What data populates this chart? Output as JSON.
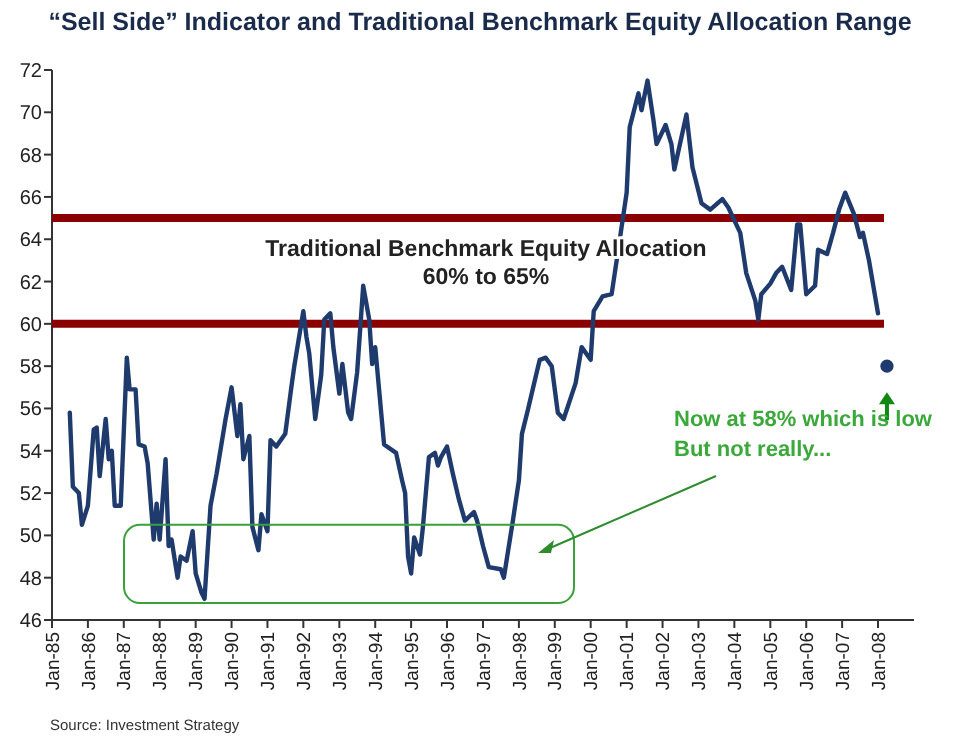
{
  "chart_data": {
    "type": "line",
    "title": "“Sell Side” Indicator  and Traditional Benchmark Equity Allocation Range",
    "series": [
      {
        "color": "#1f3b6e",
        "x": [
          "1985-07",
          "1985-08",
          "1985-10",
          "1985-11",
          "1986-01",
          "1986-03",
          "1986-04",
          "1986-05",
          "1986-07",
          "1986-08",
          "1986-09",
          "1986-10",
          "1986-12",
          "1987-02",
          "1987-03",
          "1987-05",
          "1987-06",
          "1987-08",
          "1987-09",
          "1987-11",
          "1987-12",
          "1988-01",
          "1988-03",
          "1988-04",
          "1988-05",
          "1988-07",
          "1988-08",
          "1988-10",
          "1988-12",
          "1989-01",
          "1989-03",
          "1989-04",
          "1989-06",
          "1989-08",
          "1989-11",
          "1990-01",
          "1990-02",
          "1990-03",
          "1990-04",
          "1990-05",
          "1990-07",
          "1990-08",
          "1990-10",
          "1990-11",
          "1991-01",
          "1991-02",
          "1991-04",
          "1991-07",
          "1991-09",
          "1991-10",
          "1992-01",
          "1992-02",
          "1992-03",
          "1992-05",
          "1992-07",
          "1992-08",
          "1992-10",
          "1992-11",
          "1993-01",
          "1993-02",
          "1993-04",
          "1993-05",
          "1993-07",
          "1993-09",
          "1993-11",
          "1993-12",
          "1994-01",
          "1994-04",
          "1994-08",
          "1994-10",
          "1994-11",
          "1994-12",
          "1995-01",
          "1995-02",
          "1995-04",
          "1995-05",
          "1995-07",
          "1995-09",
          "1995-10",
          "1995-11",
          "1996-01",
          "1996-03",
          "1996-05",
          "1996-07",
          "1996-10",
          "1996-11",
          "1997-01",
          "1997-03",
          "1997-07",
          "1997-08",
          "1997-11",
          "1998-01",
          "1998-02",
          "1998-04",
          "1998-07",
          "1998-08",
          "1998-10",
          "1998-12",
          "1999-02",
          "1999-04",
          "1999-08",
          "1999-10",
          "2000-01",
          "2000-02",
          "2000-05",
          "2000-08",
          "2000-10",
          "2001-01",
          "2001-02",
          "2001-05",
          "2001-06",
          "2001-08",
          "2001-10",
          "2001-11",
          "2002-02",
          "2002-04",
          "2002-05",
          "2002-09",
          "2002-11",
          "2003-02",
          "2003-05",
          "2003-09",
          "2003-11",
          "2004-03",
          "2004-05",
          "2004-08",
          "2004-09",
          "2004-10",
          "2005-01",
          "2005-03",
          "2005-05",
          "2005-08",
          "2005-10",
          "2005-11",
          "2006-01",
          "2006-04",
          "2006-05",
          "2006-08",
          "2006-10",
          "2006-12",
          "2007-02",
          "2007-05",
          "2007-07",
          "2007-08",
          "2007-10",
          "2008-01"
        ],
        "values": [
          55.8,
          52.3,
          52.0,
          50.5,
          51.4,
          55.0,
          55.1,
          52.8,
          55.5,
          53.6,
          54.0,
          51.4,
          51.4,
          58.4,
          56.9,
          56.9,
          54.3,
          54.2,
          53.4,
          49.8,
          51.5,
          49.8,
          53.6,
          49.5,
          49.8,
          48.0,
          49.0,
          48.8,
          50.2,
          48.2,
          47.3,
          47.0,
          51.4,
          52.9,
          55.5,
          57.0,
          55.8,
          54.7,
          56.2,
          53.6,
          54.7,
          50.4,
          49.3,
          51.0,
          50.2,
          54.5,
          54.2,
          54.8,
          57.0,
          58.0,
          60.6,
          59.4,
          58.6,
          55.5,
          57.6,
          60.2,
          60.5,
          58.9,
          56.7,
          58.1,
          55.8,
          55.5,
          57.7,
          61.8,
          60.2,
          58.1,
          58.9,
          54.3,
          53.9,
          52.6,
          52.0,
          49.0,
          48.2,
          49.9,
          49.1,
          50.4,
          53.7,
          53.9,
          53.3,
          53.7,
          54.2,
          52.9,
          51.7,
          50.7,
          51.1,
          50.7,
          49.5,
          48.5,
          48.4,
          48.0,
          50.7,
          52.6,
          54.8,
          55.9,
          57.7,
          58.3,
          58.4,
          58.0,
          55.8,
          55.5,
          57.2,
          58.9,
          58.3,
          60.6,
          61.3,
          61.4,
          63.3,
          66.2,
          69.3,
          70.9,
          70.1,
          71.5,
          69.6,
          68.5,
          69.4,
          68.5,
          67.3,
          69.9,
          67.4,
          65.7,
          65.4,
          65.9,
          65.5,
          64.3,
          62.4,
          61.1,
          60.2,
          61.4,
          61.9,
          62.4,
          62.7,
          61.6,
          64.7,
          64.7,
          61.4,
          61.8,
          63.5,
          63.3,
          64.3,
          65.4,
          66.2,
          65.2,
          64.1,
          64.3,
          63.0,
          60.5
        ]
      },
      {
        "type": "scatter",
        "color": "#1f3b6e",
        "x": [
          "2008-04"
        ],
        "values": [
          58
        ]
      }
    ],
    "xlim": [
      "1985-01",
      "2009-01"
    ],
    "xticks": [
      {
        "value": "1985-01",
        "label": "Jan-85"
      },
      {
        "value": "1986-01",
        "label": "Jan-86"
      },
      {
        "value": "1987-01",
        "label": "Jan-87"
      },
      {
        "value": "1988-01",
        "label": "Jan-88"
      },
      {
        "value": "1989-01",
        "label": "Jan-89"
      },
      {
        "value": "1990-01",
        "label": "Jan-90"
      },
      {
        "value": "1991-01",
        "label": "Jan-91"
      },
      {
        "value": "1992-01",
        "label": "Jan-92"
      },
      {
        "value": "1993-01",
        "label": "Jan-93"
      },
      {
        "value": "1994-01",
        "label": "Jan-94"
      },
      {
        "value": "1995-01",
        "label": "Jan-95"
      },
      {
        "value": "1996-01",
        "label": "Jan-96"
      },
      {
        "value": "1997-01",
        "label": "Jan-97"
      },
      {
        "value": "1998-01",
        "label": "Jan-98"
      },
      {
        "value": "1999-01",
        "label": "Jan-99"
      },
      {
        "value": "2000-01",
        "label": "Jan-00"
      },
      {
        "value": "2001-01",
        "label": "Jan-01"
      },
      {
        "value": "2002-01",
        "label": "Jan-02"
      },
      {
        "value": "2003-01",
        "label": "Jan-03"
      },
      {
        "value": "2004-01",
        "label": "Jan-04"
      },
      {
        "value": "2005-01",
        "label": "Jan-05"
      },
      {
        "value": "2006-01",
        "label": "Jan-06"
      },
      {
        "value": "2007-01",
        "label": "Jan-07"
      },
      {
        "value": "2008-01",
        "label": "Jan-08"
      }
    ],
    "ylim": [
      46,
      72
    ],
    "yticks": [
      46,
      48,
      50,
      52,
      54,
      56,
      58,
      60,
      62,
      64,
      66,
      68,
      70,
      72
    ],
    "ref_lines": [
      {
        "axis": "y",
        "value": 65,
        "color": "#8b0000"
      },
      {
        "axis": "y",
        "value": 60,
        "color": "#8b0000"
      }
    ],
    "annotations": [
      "Traditional Benchmark Equity Allocation",
      "60% to 65%",
      "Now at 58% which is low",
      "But not really...",
      "Source: Investment Strategy"
    ]
  }
}
